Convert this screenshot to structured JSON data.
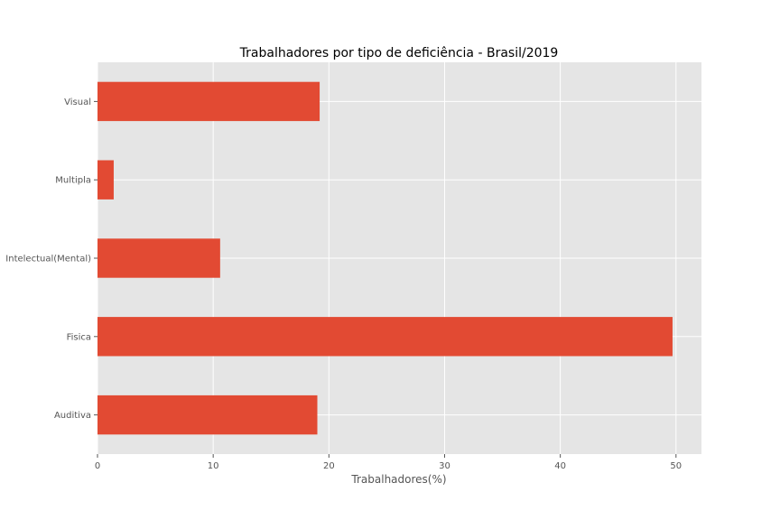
{
  "chart_data": {
    "type": "bar",
    "orientation": "horizontal",
    "title": "Trabalhadores por tipo de deficiência - Brasil/2019",
    "xlabel": "Trabalhadores(%)",
    "ylabel": "",
    "categories": [
      "Auditiva",
      "Fisica",
      "Intelectual(Mental)",
      "Multipla",
      "Visual"
    ],
    "values": [
      19.0,
      49.7,
      10.6,
      1.4,
      19.2
    ],
    "xlim": [
      0,
      52.2
    ],
    "xticks": [
      "0",
      "10",
      "20",
      "30",
      "40",
      "50"
    ],
    "grid": true,
    "legend": "none",
    "colors": {
      "bar": "#E24A33",
      "plot_background": "#E5E5E5",
      "grid": "#FFFFFF",
      "text": "#555555"
    }
  }
}
